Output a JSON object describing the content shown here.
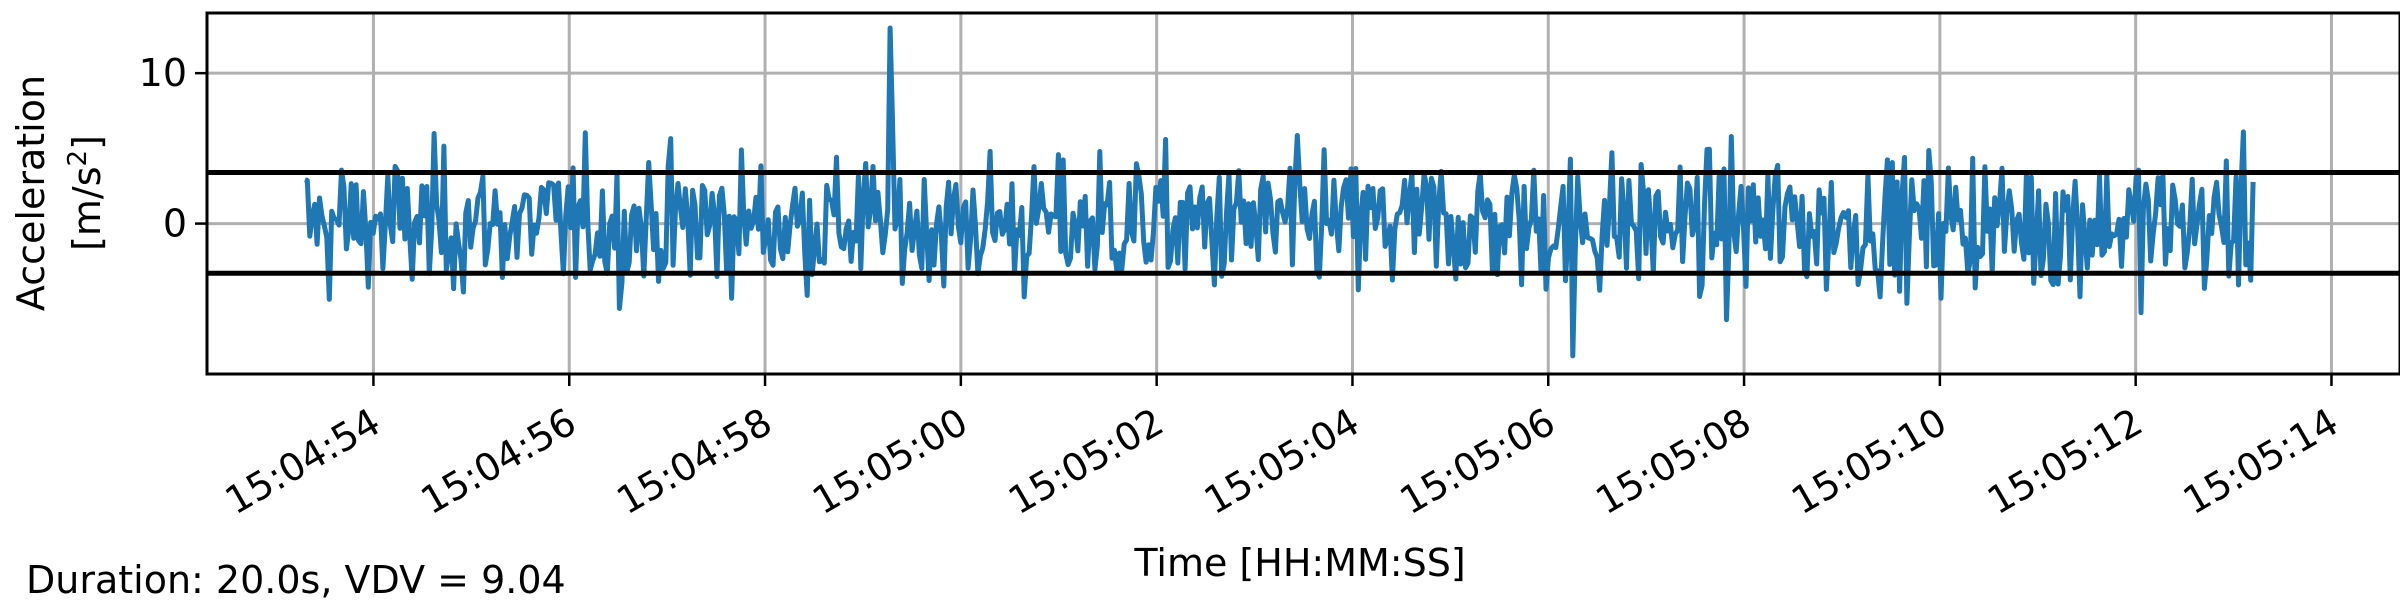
{
  "chart_data": {
    "type": "line",
    "xlabel": "Time [HH:MM:SS]",
    "ylabel_line1": "Acceleration",
    "ylabel_line2_prefix": "[m/s",
    "ylabel_line2_sup": "2",
    "ylabel_line2_suffix": "]",
    "x_ticks": [
      "15:04:54",
      "15:04:56",
      "15:04:58",
      "15:05:00",
      "15:05:02",
      "15:05:04",
      "15:05:06",
      "15:05:08",
      "15:05:10",
      "15:05:12",
      "15:05:14"
    ],
    "y_ticks": [
      "10",
      "0"
    ],
    "x_range_seconds": [
      52.3,
      74.7
    ],
    "x_data_start_seconds": 53.3,
    "x_data_end_seconds": 73.2,
    "ylim": [
      -10,
      14
    ],
    "thresholds": [
      3.4,
      -3.3
    ],
    "grid": true,
    "series": [
      {
        "color": "#1f77b4",
        "sample_count": 800,
        "y_min": -8.8,
        "y_max": 13.0
      }
    ],
    "colors": {
      "series": "#1f77b4",
      "threshold": "#000000",
      "grid": "#b0b0b0"
    }
  },
  "footer": {
    "duration_text": "Duration: 20.0s, VDV = 9.04"
  }
}
